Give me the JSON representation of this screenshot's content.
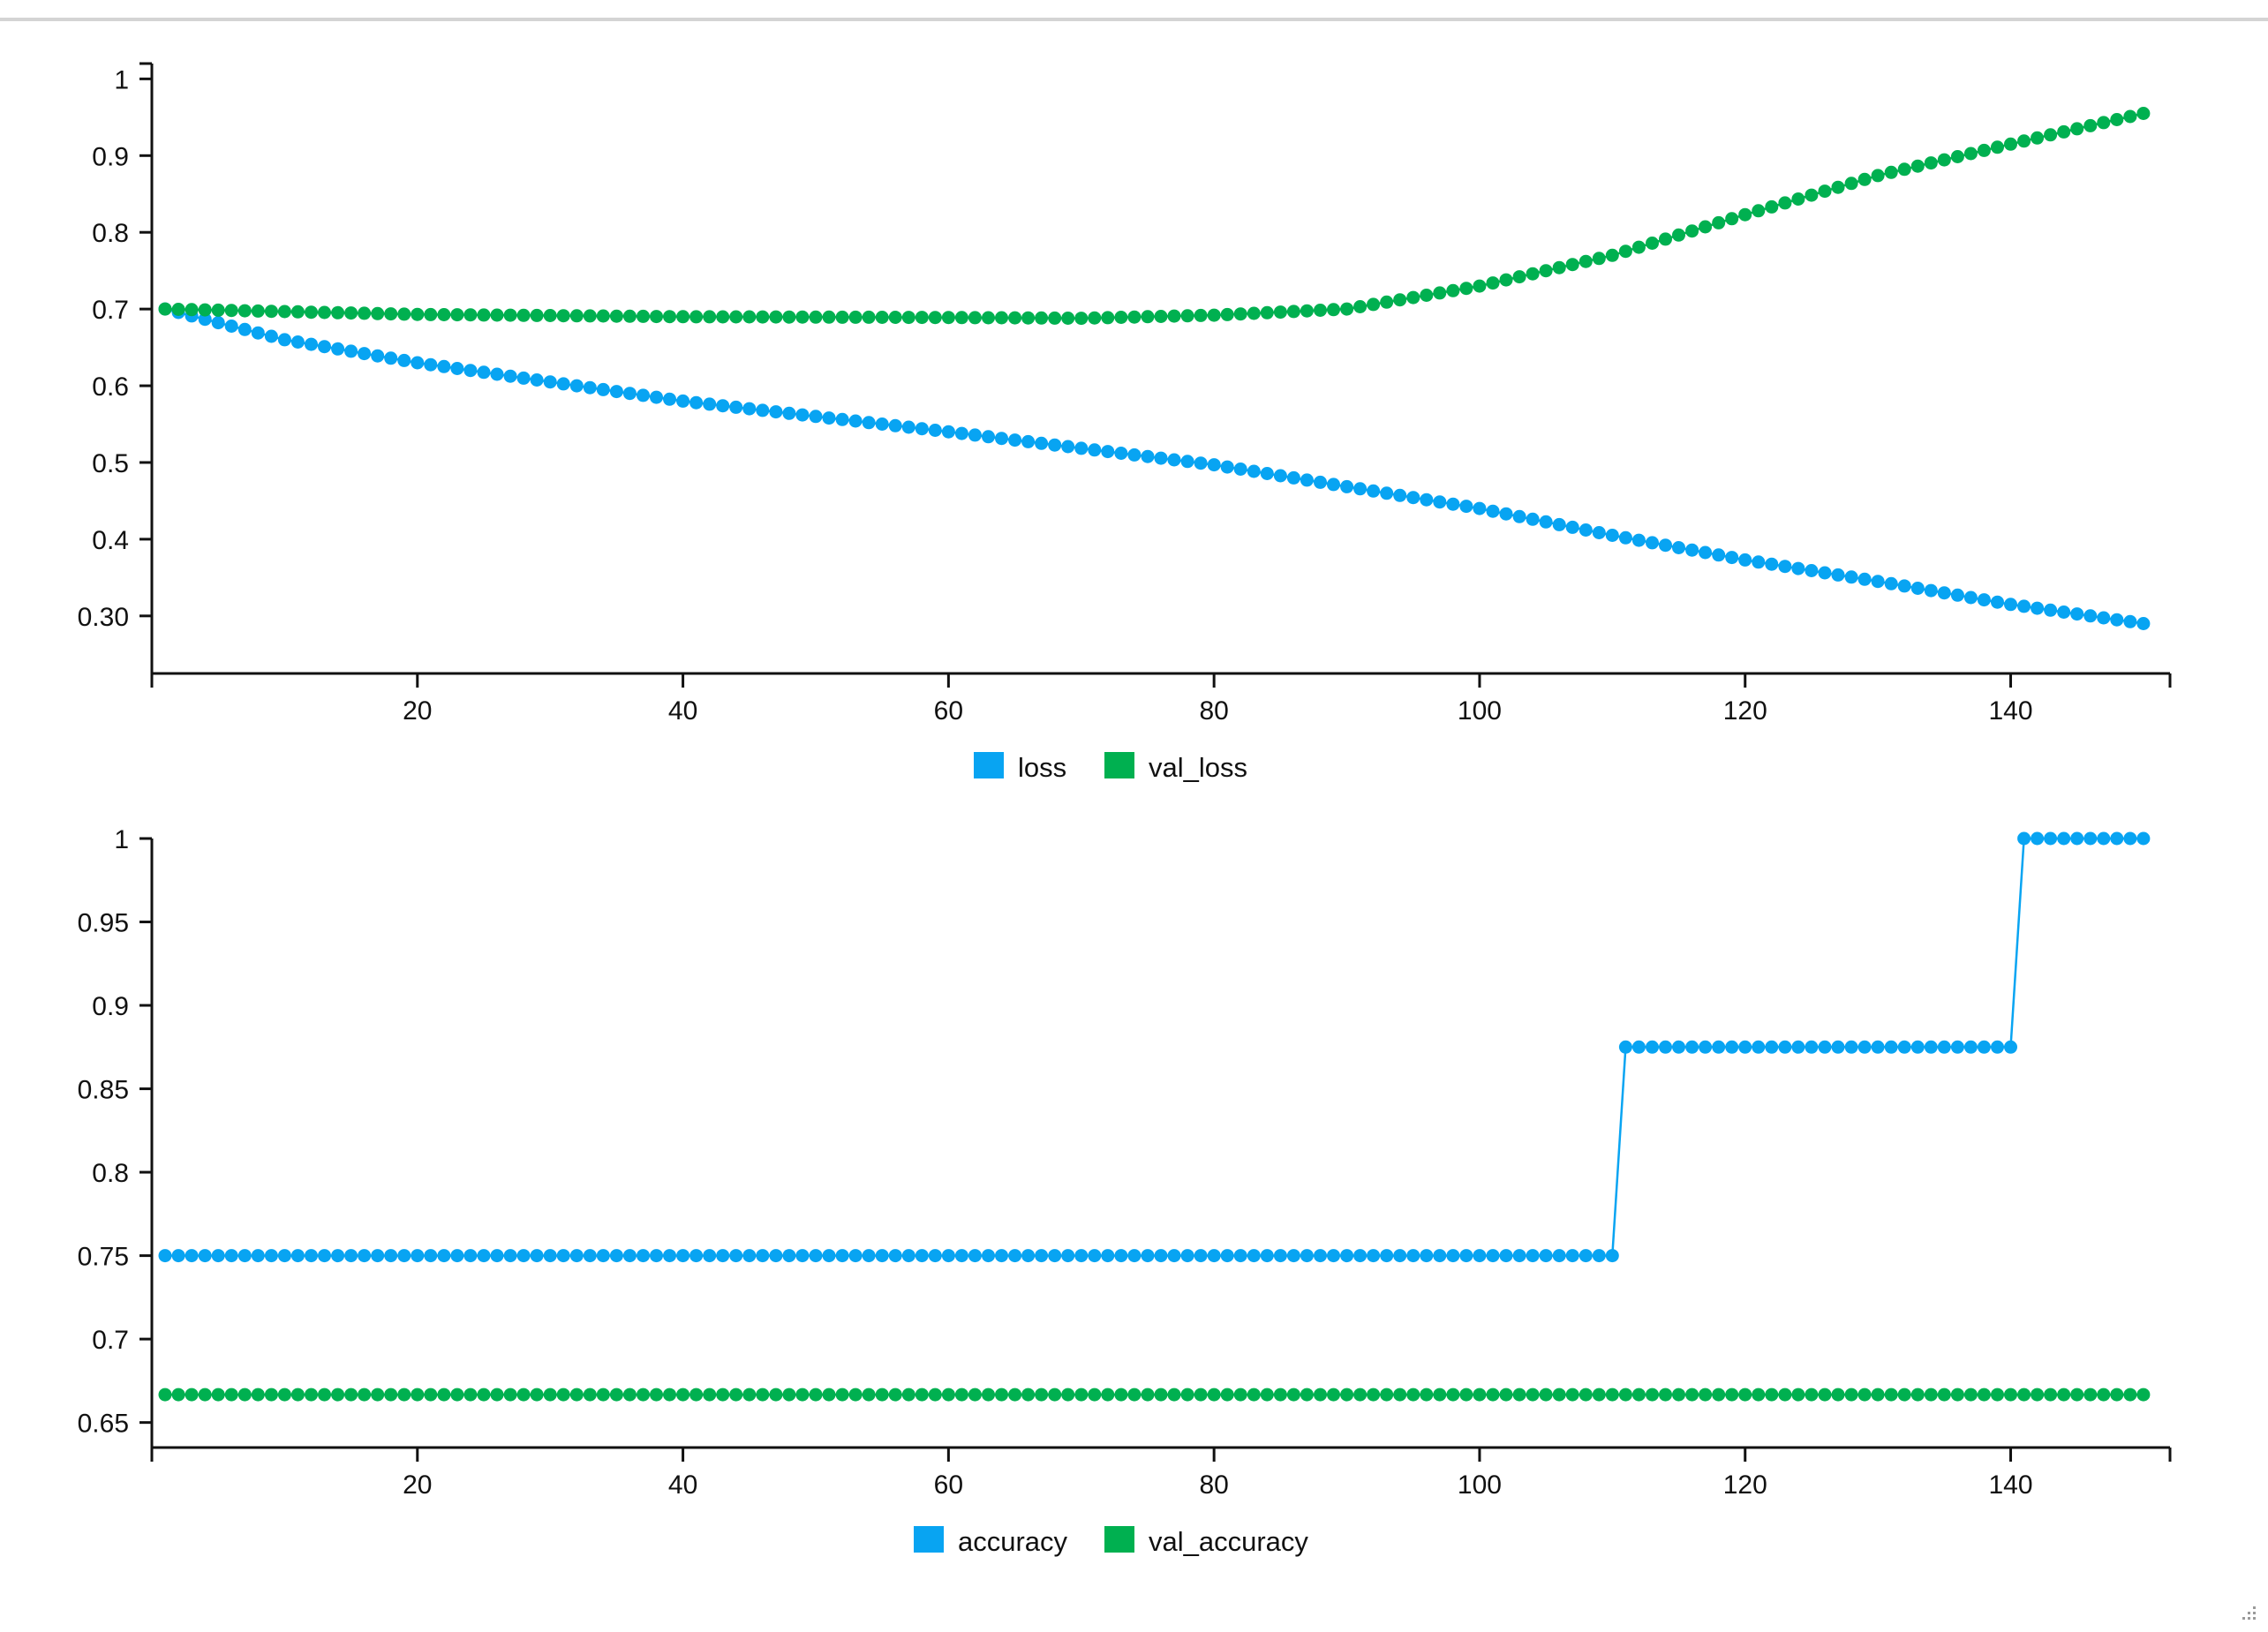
{
  "colors": {
    "series_a": "#08a4f2",
    "series_b": "#00b050",
    "axis": "#111111",
    "rule": "#d4d4d4"
  },
  "icons": {
    "resize": "resize-grip-icon"
  },
  "chart_data": [
    {
      "type": "line",
      "markers": "dot",
      "x_range": [
        1,
        150
      ],
      "xlim": [
        0,
        152
      ],
      "ylim": [
        0.225,
        1.02
      ],
      "x_ticks": [
        20,
        40,
        60,
        80,
        100,
        120,
        140
      ],
      "x_tick_labels": [
        "20",
        "40",
        "60",
        "80",
        "100",
        "120",
        "140"
      ],
      "y_ticks": [
        1,
        0.9,
        0.8,
        0.7,
        0.6,
        0.5,
        0.4,
        0.3
      ],
      "y_tick_labels": [
        "1",
        "0.9",
        "0.8",
        "0.7",
        "0.6",
        "0.5",
        "0.4",
        "0.30"
      ],
      "grid": false,
      "legend_position": "bottom-center",
      "series": [
        {
          "name": "loss",
          "color": "#08a4f2",
          "keypoints": [
            [
              1,
              0.7
            ],
            [
              10,
              0.66
            ],
            [
              20,
              0.63
            ],
            [
              40,
              0.58
            ],
            [
              60,
              0.54
            ],
            [
              80,
              0.497
            ],
            [
              100,
              0.44
            ],
            [
              110,
              0.405
            ],
            [
              120,
              0.373
            ],
            [
              130,
              0.345
            ],
            [
              140,
              0.315
            ],
            [
              150,
              0.29
            ]
          ]
        },
        {
          "name": "val_loss",
          "color": "#00b050",
          "keypoints": [
            [
              1,
              0.7
            ],
            [
              20,
              0.693
            ],
            [
              40,
              0.69
            ],
            [
              60,
              0.689
            ],
            [
              70,
              0.688
            ],
            [
              80,
              0.692
            ],
            [
              90,
              0.7
            ],
            [
              100,
              0.73
            ],
            [
              110,
              0.77
            ],
            [
              120,
              0.823
            ],
            [
              130,
              0.874
            ],
            [
              140,
              0.915
            ],
            [
              150,
              0.955
            ]
          ]
        }
      ]
    },
    {
      "type": "line",
      "markers": "dot",
      "x_range": [
        1,
        150
      ],
      "xlim": [
        0,
        152
      ],
      "ylim": [
        0.635,
        1.0
      ],
      "x_ticks": [
        20,
        40,
        60,
        80,
        100,
        120,
        140
      ],
      "x_tick_labels": [
        "20",
        "40",
        "60",
        "80",
        "100",
        "120",
        "140"
      ],
      "y_ticks": [
        1,
        0.95,
        0.9,
        0.85,
        0.8,
        0.75,
        0.7,
        0.65
      ],
      "y_tick_labels": [
        "1",
        "0.95",
        "0.9",
        "0.85",
        "0.8",
        "0.75",
        "0.7",
        "0.65"
      ],
      "grid": false,
      "legend_position": "bottom-center",
      "series": [
        {
          "name": "accuracy",
          "color": "#08a4f2",
          "steps": [
            {
              "from": 1,
              "to": 110,
              "value": 0.75
            },
            {
              "from": 111,
              "to": 140,
              "value": 0.875
            },
            {
              "from": 141,
              "to": 150,
              "value": 1.0
            }
          ]
        },
        {
          "name": "val_accuracy",
          "color": "#00b050",
          "steps": [
            {
              "from": 1,
              "to": 150,
              "value": 0.6667
            }
          ]
        }
      ]
    }
  ]
}
